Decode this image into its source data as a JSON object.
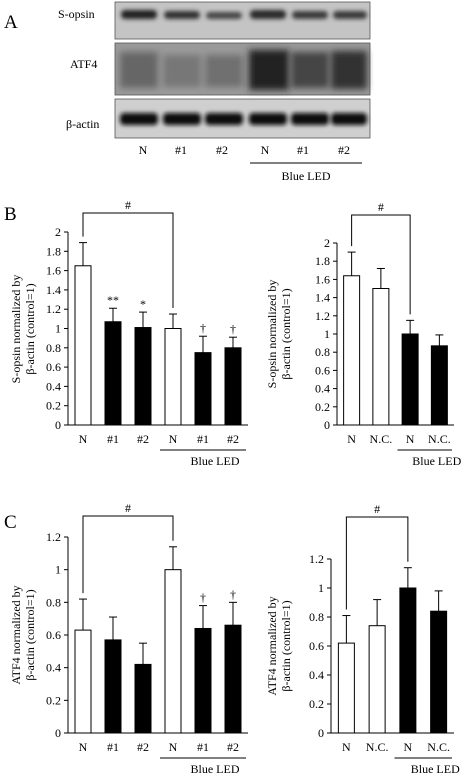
{
  "panel_labels": {
    "a": "A",
    "b": "B",
    "c": "C"
  },
  "blot": {
    "rows": [
      "S-opsin",
      "ATF4",
      "β-actin"
    ],
    "lanes": [
      "N",
      "#1",
      "#2",
      "N",
      "#1",
      "#2"
    ],
    "group_label": "Blue LED"
  },
  "colors": {
    "bar_filled": "#000000",
    "bar_open": "#ffffff",
    "stroke": "#000000"
  },
  "chart_data": [
    {
      "id": "B-left",
      "type": "bar",
      "ylabel": [
        "S-opsin normalized by",
        "β-actin (control=1)"
      ],
      "ylim": [
        0,
        2
      ],
      "yticks": [
        "0",
        "0.2",
        "0.4",
        "0.6",
        "0.8",
        "1",
        "1.2",
        "1.4",
        "1.6",
        "1.8",
        "2"
      ],
      "categories": [
        "N",
        "#1",
        "#2",
        "N",
        "#1",
        "#2"
      ],
      "values": [
        1.65,
        1.07,
        1.01,
        1.0,
        0.75,
        0.8
      ],
      "errors": [
        0.24,
        0.14,
        0.16,
        0.15,
        0.17,
        0.11
      ],
      "filled": [
        false,
        true,
        true,
        false,
        true,
        true
      ],
      "marks": [
        "",
        "**",
        "*",
        "",
        "†",
        "†"
      ],
      "group_label": "Blue LED",
      "sig_label": "#"
    },
    {
      "id": "B-right",
      "type": "bar",
      "ylabel": [
        "S-opsin normalized by",
        "β-actin (control=1)"
      ],
      "ylim": [
        0,
        2
      ],
      "yticks": [
        "0",
        "0.2",
        "0.4",
        "0.6",
        "0.8",
        "1",
        "1.2",
        "1.4",
        "1.6",
        "1.8",
        "2"
      ],
      "categories": [
        "N",
        "N.C.",
        "N",
        "N.C."
      ],
      "values": [
        1.64,
        1.5,
        1.0,
        0.87
      ],
      "errors": [
        0.26,
        0.22,
        0.15,
        0.12
      ],
      "filled": [
        false,
        false,
        true,
        true
      ],
      "marks": [
        "",
        "",
        "",
        ""
      ],
      "group_label": "Blue LED",
      "sig_label": "#"
    },
    {
      "id": "C-left",
      "type": "bar",
      "ylabel": [
        "ATF4 normalized by",
        "β-actin (control=1)"
      ],
      "ylim": [
        0,
        1.2
      ],
      "yticks": [
        "0",
        "0.2",
        "0.4",
        "0.6",
        "0.8",
        "1",
        "1.2"
      ],
      "categories": [
        "N",
        "#1",
        "#2",
        "N",
        "#1",
        "#2"
      ],
      "values": [
        0.63,
        0.57,
        0.42,
        1.0,
        0.64,
        0.66
      ],
      "errors": [
        0.19,
        0.14,
        0.13,
        0.14,
        0.14,
        0.14
      ],
      "filled": [
        false,
        true,
        true,
        false,
        true,
        true
      ],
      "marks": [
        "",
        "",
        "",
        "",
        "†",
        "†"
      ],
      "group_label": "Blue LED",
      "sig_label": "#"
    },
    {
      "id": "C-right",
      "type": "bar",
      "ylabel": [
        "ATF4 normalized by",
        "β-actin (control=1)"
      ],
      "ylim": [
        0,
        1.2
      ],
      "yticks": [
        "0",
        "0.2",
        "0.4",
        "0.6",
        "0.8",
        "1",
        "1.2"
      ],
      "categories": [
        "N",
        "N.C.",
        "N",
        "N.C."
      ],
      "values": [
        0.62,
        0.74,
        1.0,
        0.84
      ],
      "errors": [
        0.19,
        0.18,
        0.14,
        0.14
      ],
      "filled": [
        false,
        false,
        true,
        true
      ],
      "marks": [
        "",
        "",
        "",
        ""
      ],
      "group_label": "Blue LED",
      "sig_label": "#"
    }
  ]
}
